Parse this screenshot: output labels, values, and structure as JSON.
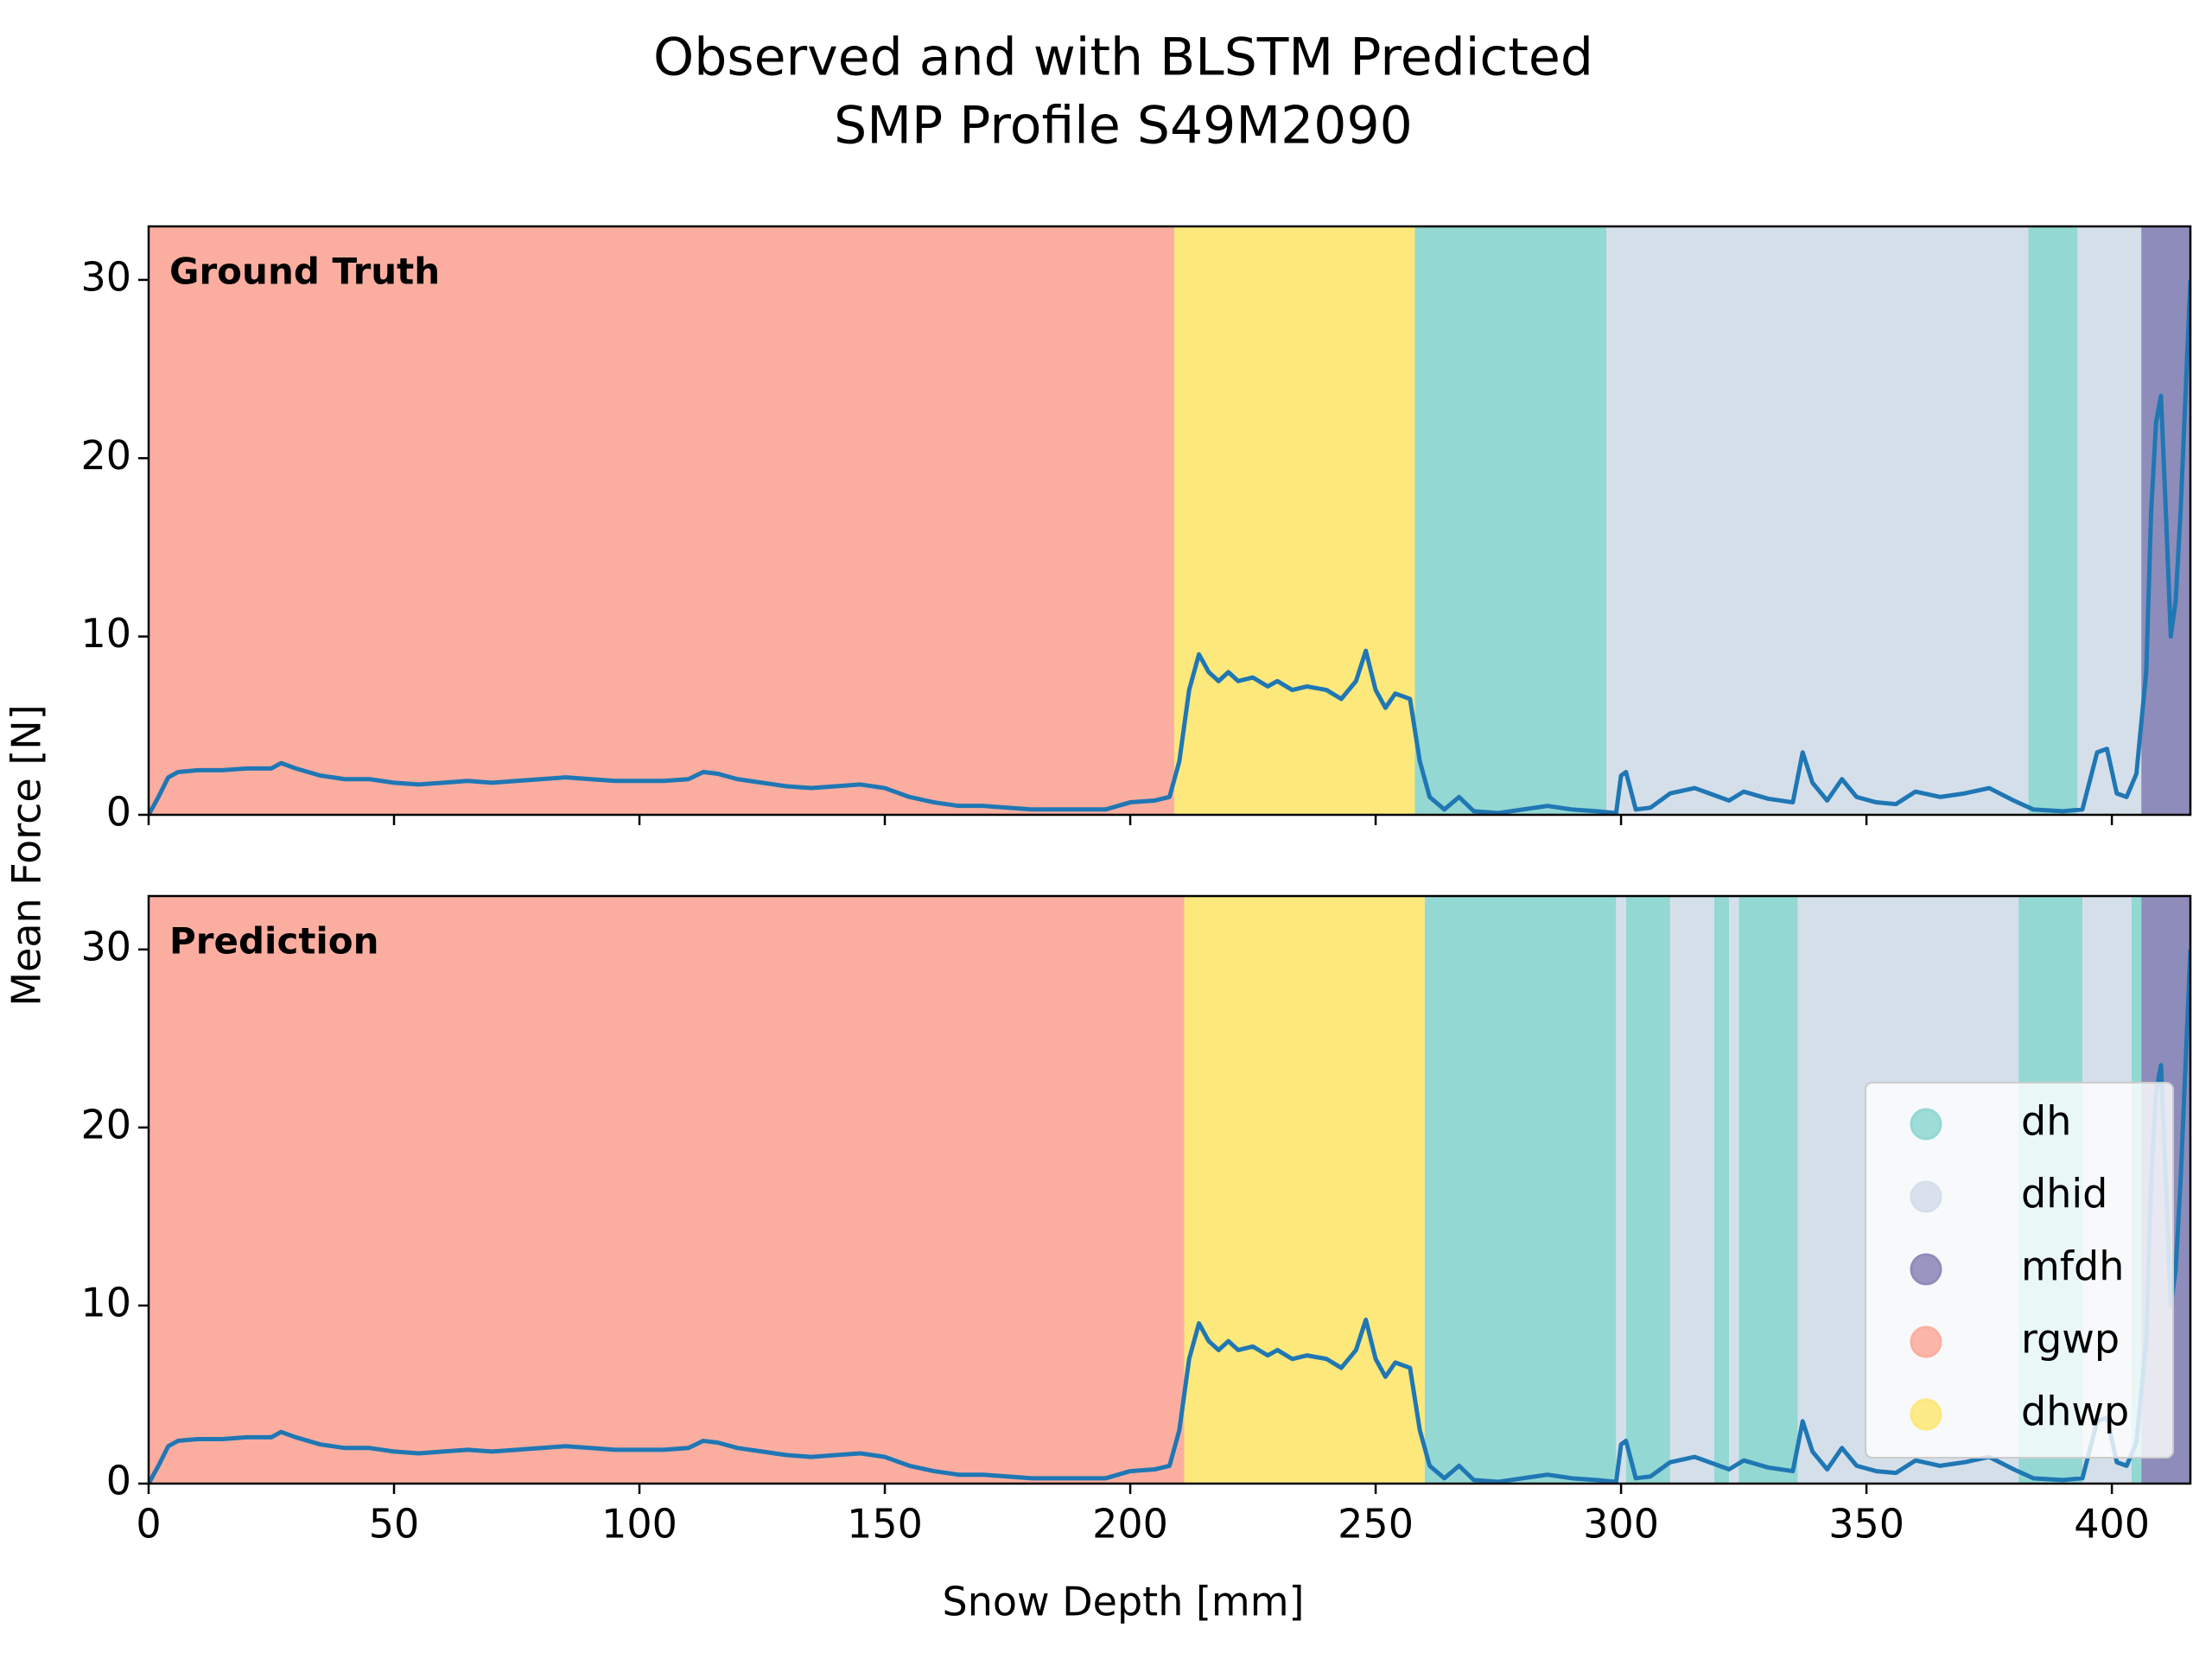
{
  "chart_data": {
    "type": "line",
    "title": "Observed and with BLSTM Predicted",
    "subtitle": "SMP Profile S49M2090",
    "xlabel": "Snow Depth [mm]",
    "ylabel": "Mean Force [N]",
    "xlim": [
      0,
      416
    ],
    "xticks": [
      0,
      50,
      100,
      150,
      200,
      250,
      300,
      350,
      400
    ],
    "ylim": [
      0,
      33
    ],
    "yticks": [
      0,
      10,
      20,
      30
    ],
    "line_color": "#1f77b4",
    "legend": "lower right",
    "classes": [
      {
        "name": "dh",
        "color": "#93d8d3"
      },
      {
        "name": "dhid",
        "color": "#d5dfea"
      },
      {
        "name": "mfdh",
        "color": "#8e8cba"
      },
      {
        "name": "rgwp",
        "color": "#fbaea0"
      },
      {
        "name": "dhwp",
        "color": "#fde87c"
      }
    ],
    "panels": [
      {
        "label": "Ground Truth",
        "segments": [
          {
            "class": "rgwp",
            "start": 0,
            "end": 209
          },
          {
            "class": "dhwp",
            "start": 209,
            "end": 258
          },
          {
            "class": "dh",
            "start": 258,
            "end": 297
          },
          {
            "class": "dhid",
            "start": 297,
            "end": 383
          },
          {
            "class": "dh",
            "start": 383,
            "end": 393
          },
          {
            "class": "dhid",
            "start": 393,
            "end": 406
          },
          {
            "class": "mfdh",
            "start": 406,
            "end": 416
          }
        ]
      },
      {
        "label": "Prediction",
        "segments": [
          {
            "class": "rgwp",
            "start": 0,
            "end": 211
          },
          {
            "class": "dhwp",
            "start": 211,
            "end": 260
          },
          {
            "class": "dh",
            "start": 260,
            "end": 299
          },
          {
            "class": "dhid",
            "start": 299,
            "end": 301
          },
          {
            "class": "dh",
            "start": 301,
            "end": 310
          },
          {
            "class": "dhid",
            "start": 310,
            "end": 319
          },
          {
            "class": "dh",
            "start": 319,
            "end": 322
          },
          {
            "class": "dhid",
            "start": 322,
            "end": 324
          },
          {
            "class": "dh",
            "start": 324,
            "end": 336
          },
          {
            "class": "dhid",
            "start": 336,
            "end": 381
          },
          {
            "class": "dh",
            "start": 381,
            "end": 394
          },
          {
            "class": "dhid",
            "start": 394,
            "end": 404
          },
          {
            "class": "dh",
            "start": 404,
            "end": 406
          },
          {
            "class": "mfdh",
            "start": 406,
            "end": 416
          }
        ]
      }
    ],
    "x": [
      0,
      2,
      4,
      6,
      10,
      15,
      20,
      25,
      27,
      30,
      35,
      40,
      45,
      50,
      55,
      60,
      65,
      70,
      75,
      80,
      85,
      90,
      95,
      100,
      105,
      110,
      113,
      116,
      120,
      125,
      130,
      135,
      140,
      145,
      150,
      155,
      160,
      165,
      170,
      175,
      180,
      185,
      190,
      195,
      200,
      205,
      208,
      210,
      212,
      214,
      216,
      218,
      220,
      222,
      225,
      228,
      230,
      233,
      236,
      240,
      243,
      246,
      248,
      250,
      252,
      254,
      257,
      259,
      261,
      264,
      267,
      270,
      275,
      280,
      285,
      290,
      295,
      299,
      300,
      301,
      303,
      306,
      310,
      315,
      318,
      322,
      325,
      330,
      335,
      337,
      339,
      342,
      345,
      348,
      352,
      356,
      360,
      365,
      370,
      375,
      380,
      384,
      390,
      394,
      397,
      399,
      401,
      403,
      405,
      407,
      408,
      409,
      410,
      411,
      412,
      413,
      414,
      416
    ],
    "values": [
      0,
      1,
      2.1,
      2.4,
      2.5,
      2.5,
      2.6,
      2.6,
      2.9,
      2.6,
      2.2,
      2.0,
      2.0,
      1.8,
      1.7,
      1.8,
      1.9,
      1.8,
      1.9,
      2.0,
      2.1,
      2.0,
      1.9,
      1.9,
      1.9,
      2.0,
      2.4,
      2.3,
      2.0,
      1.8,
      1.6,
      1.5,
      1.6,
      1.7,
      1.5,
      1.0,
      0.7,
      0.5,
      0.5,
      0.4,
      0.3,
      0.3,
      0.3,
      0.3,
      0.7,
      0.8,
      1.0,
      3,
      7,
      9,
      8,
      7.5,
      8,
      7.5,
      7.7,
      7.2,
      7.5,
      7.0,
      7.2,
      7,
      6.5,
      7.5,
      9.2,
      7,
      6,
      6.8,
      6.5,
      3,
      1,
      0.3,
      1,
      0.2,
      0.1,
      0.3,
      0.5,
      0.3,
      0.2,
      0.1,
      2.2,
      2.4,
      0.3,
      0.4,
      1.2,
      1.5,
      1.2,
      0.8,
      1.3,
      0.9,
      0.7,
      3.5,
      1.8,
      0.8,
      2.0,
      1.0,
      0.7,
      0.6,
      1.3,
      1.0,
      1.2,
      1.5,
      0.8,
      0.3,
      0.2,
      0.3,
      3.5,
      3.7,
      1.2,
      1.0,
      2.3,
      8,
      17,
      22,
      23.5,
      17,
      10,
      12,
      17,
      30
    ]
  }
}
